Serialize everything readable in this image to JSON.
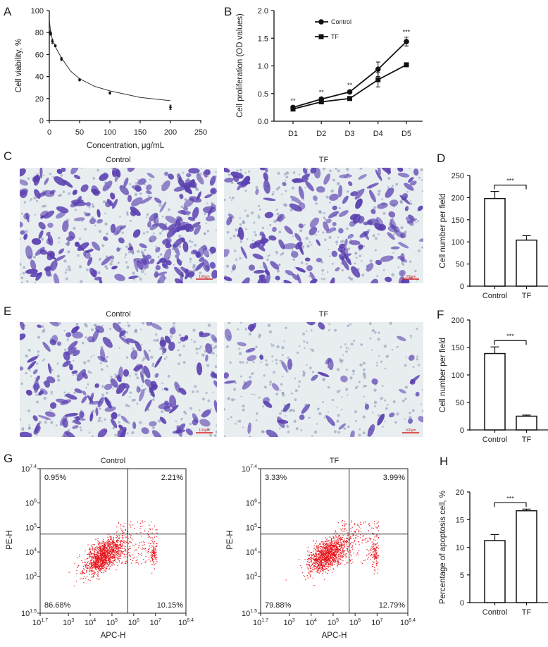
{
  "panel_labels": [
    "A",
    "B",
    "C",
    "D",
    "E",
    "F",
    "G",
    "H"
  ],
  "micrographs": {
    "C": {
      "titles": [
        "Control",
        "TF"
      ],
      "scale_bar": "100μm",
      "stain_color": "#5a3fb0",
      "background_color": "#e8eef0"
    },
    "E": {
      "titles": [
        "Control",
        "TF"
      ],
      "scale_bar": "100μm",
      "stain_color": "#5a3fb0",
      "background_color": "#e8eef0"
    }
  },
  "chart_data": [
    {
      "id": "A",
      "type": "scatter",
      "xlabel": "Concentration, μg/mL",
      "ylabel": "Cell viability, %",
      "xlim": [
        0,
        250
      ],
      "ylim": [
        0,
        100
      ],
      "xticks": [
        "0",
        "50",
        "100",
        "150",
        "200",
        "250"
      ],
      "yticks": [
        "0",
        "20",
        "40",
        "60",
        "80",
        "100"
      ],
      "x": [
        1,
        2.5,
        5,
        10,
        20,
        50,
        100,
        200
      ],
      "y": [
        80,
        79,
        72,
        68,
        56,
        37,
        25,
        12
      ],
      "error": [
        1.5,
        1.5,
        2,
        1,
        1.5,
        1,
        1,
        2
      ],
      "fit_curve": {
        "x": [
          0.3,
          1,
          2.5,
          5,
          10,
          20,
          35,
          50,
          75,
          100,
          150,
          200
        ],
        "y": [
          91,
          86,
          80,
          74,
          67,
          57,
          45,
          38,
          31,
          27,
          21,
          18
        ]
      }
    },
    {
      "id": "B",
      "type": "line",
      "ylabel": "Cell proliferation (OD values)",
      "ylim": [
        0,
        2.0
      ],
      "yticks": [
        "0.0",
        "0.5",
        "1.0",
        "1.5",
        "2.0"
      ],
      "categories": [
        "D1",
        "D2",
        "D3",
        "D4",
        "D5"
      ],
      "series": [
        {
          "name": "Control",
          "marker": "circle",
          "values": [
            0.25,
            0.4,
            0.53,
            0.94,
            1.44
          ],
          "error": [
            0.03,
            0.03,
            0.03,
            0.13,
            0.08
          ]
        },
        {
          "name": "TF",
          "marker": "square",
          "values": [
            0.22,
            0.35,
            0.41,
            0.75,
            1.02
          ],
          "error": [
            0.02,
            0.02,
            0.02,
            0.13,
            0.02
          ]
        }
      ],
      "significance": [
        "**",
        "**",
        "**",
        "",
        "***"
      ],
      "legend": "top-left"
    },
    {
      "id": "D",
      "type": "bar",
      "ylabel": "Cell number per field",
      "ylim": [
        0,
        250
      ],
      "yticks": [
        "0",
        "50",
        "100",
        "150",
        "200",
        "250"
      ],
      "categories": [
        "Control",
        "TF"
      ],
      "values": [
        198,
        104
      ],
      "error": [
        16,
        10
      ],
      "significance": "***"
    },
    {
      "id": "F",
      "type": "bar",
      "ylabel": "Cell number per field",
      "ylim": [
        0,
        200
      ],
      "yticks": [
        "0",
        "50",
        "100",
        "150",
        "200"
      ],
      "categories": [
        "Control",
        "TF"
      ],
      "values": [
        139,
        25
      ],
      "error": [
        12,
        2
      ],
      "significance": "***"
    },
    {
      "id": "H",
      "type": "bar",
      "ylabel": "Percentage of apoptosis cell, %",
      "ylim": [
        0,
        20
      ],
      "yticks": [
        "0",
        "5",
        "10",
        "15",
        "20"
      ],
      "categories": [
        "Control",
        "TF"
      ],
      "values": [
        11.2,
        16.6
      ],
      "error": [
        1.1,
        0.3
      ],
      "significance": "***"
    },
    {
      "id": "G-control",
      "type": "scatter",
      "title": "Control",
      "xlabel": "APC-H",
      "ylabel": "PE-H",
      "x_scale": "log",
      "y_scale": "log",
      "xlim_exp": [
        1.7,
        8.4
      ],
      "ylim_exp": [
        1.5,
        7.4
      ],
      "xticks": [
        {
          "base": "10",
          "exp": "1.7"
        },
        {
          "base": "10",
          "exp": "3"
        },
        {
          "base": "10",
          "exp": "4"
        },
        {
          "base": "10",
          "exp": "5"
        },
        {
          "base": "10",
          "exp": "6"
        },
        {
          "base": "10",
          "exp": "7"
        },
        {
          "base": "10",
          "exp": "8.4"
        }
      ],
      "yticks": [
        {
          "base": "10",
          "exp": "1.5"
        },
        {
          "base": "10",
          "exp": "3"
        },
        {
          "base": "10",
          "exp": "4"
        },
        {
          "base": "10",
          "exp": "5"
        },
        {
          "base": "10",
          "exp": "6"
        },
        {
          "base": "10",
          "exp": "7.4"
        }
      ],
      "gate_exp": {
        "x": 5.73,
        "y": 4.73
      },
      "quadrants": {
        "upper_left": "0.95%",
        "upper_right": "2.21%",
        "lower_left": "86.68%",
        "lower_right": "10.15%"
      },
      "point_color": "#e8141b"
    },
    {
      "id": "G-tf",
      "type": "scatter",
      "title": "TF",
      "xlabel": "APC-H",
      "ylabel": "PE-H",
      "x_scale": "log",
      "y_scale": "log",
      "xlim_exp": [
        1.7,
        8.4
      ],
      "ylim_exp": [
        1.5,
        7.4
      ],
      "xticks": [
        {
          "base": "10",
          "exp": "1.7"
        },
        {
          "base": "10",
          "exp": "3"
        },
        {
          "base": "10",
          "exp": "4"
        },
        {
          "base": "10",
          "exp": "5"
        },
        {
          "base": "10",
          "exp": "6"
        },
        {
          "base": "10",
          "exp": "7"
        },
        {
          "base": "10",
          "exp": "8.4"
        }
      ],
      "yticks": [
        {
          "base": "10",
          "exp": "1.5"
        },
        {
          "base": "10",
          "exp": "3"
        },
        {
          "base": "10",
          "exp": "4"
        },
        {
          "base": "10",
          "exp": "5"
        },
        {
          "base": "10",
          "exp": "6"
        },
        {
          "base": "10",
          "exp": "7.4"
        }
      ],
      "gate_exp": {
        "x": 5.73,
        "y": 4.73
      },
      "quadrants": {
        "upper_left": "3.33%",
        "upper_right": "3.99%",
        "lower_left": "79.88%",
        "lower_right": "12.79%"
      },
      "point_color": "#e8141b"
    }
  ]
}
